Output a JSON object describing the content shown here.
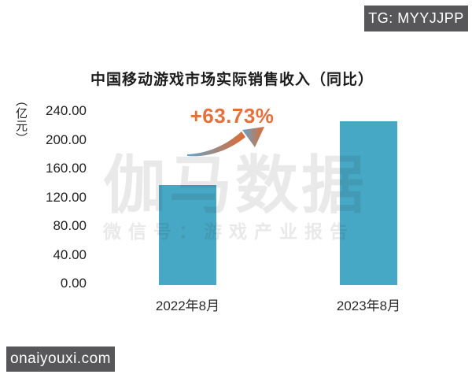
{
  "page": {
    "tg_badge": "TG: MYYJJPP",
    "site_badge": "onaiyouxi.com"
  },
  "watermark": {
    "brand": "伽马数据",
    "subtitle": "微信号：游戏产业报告"
  },
  "chart_data": {
    "type": "bar",
    "title": "中国移动游戏市场实际销售收入（同比）",
    "unit_label": "（亿元）",
    "categories": [
      "2022年8月",
      "2023年8月"
    ],
    "values": [
      139,
      228
    ],
    "ytick_labels": [
      "240.00",
      "200.00",
      "160.00",
      "120.00",
      "80.00",
      "40.00",
      "0.00"
    ],
    "ylim": [
      0,
      240
    ],
    "annotation": "+63.73%",
    "grid": false,
    "legend": "none",
    "bar_color": "#47A8C5",
    "annotation_color": "#E4703C",
    "arrow_gradient": [
      "#62A3C9",
      "#E06A33"
    ]
  }
}
